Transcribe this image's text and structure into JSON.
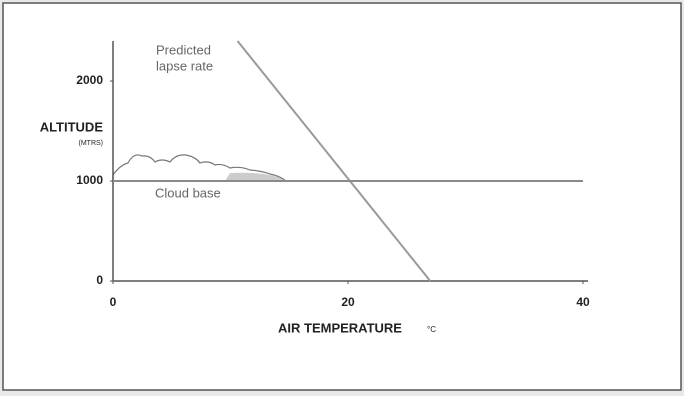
{
  "chart_data": {
    "type": "line",
    "axis_labels": {
      "y": "ALTITUDE",
      "y_unit": "(MTRS)",
      "x": "AIR TEMPERATURE",
      "x_unit": "°C"
    },
    "annotations": [
      "Predicted",
      "lapse rate",
      "Cloud base"
    ],
    "series": [
      {
        "x": [
          10.6,
          27
        ],
        "values": [
          2400,
          0
        ],
        "color": "#9a9a9a"
      },
      {
        "x": [
          0,
          40
        ],
        "values": [
          1000,
          1000
        ],
        "color": "#8a8a8a"
      }
    ],
    "xlim": [
      0,
      40
    ],
    "ylim": [
      0,
      2400
    ],
    "xticks": [
      0,
      20,
      40
    ],
    "yticks": [
      0,
      1000,
      2000
    ]
  }
}
